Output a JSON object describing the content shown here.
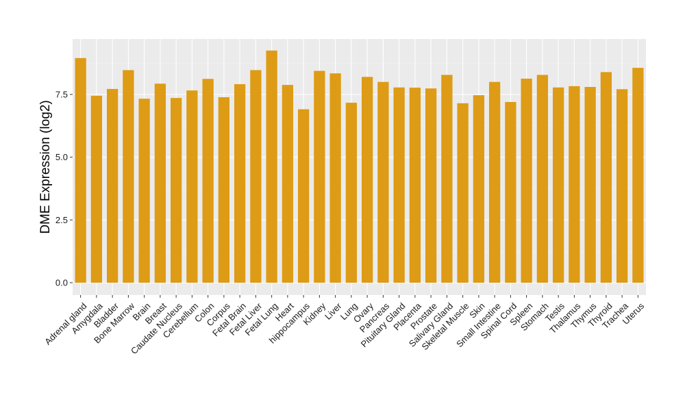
{
  "colors": {
    "bar": "#DE9B15",
    "panel_background": "#EBEBEB",
    "grid_major": "#FFFFFF",
    "grid_minor": "#F5F5F5",
    "tick_mark": "#333333"
  },
  "chart_data": {
    "type": "bar",
    "title": "",
    "xlabel": "",
    "ylabel": "DME Expression (log2)",
    "ylim": [
      -0.45,
      9.75
    ],
    "yticks": [
      0.0,
      2.5,
      5.0,
      7.5
    ],
    "ytick_labels": [
      "0.0",
      "2.5",
      "5.0",
      "7.5"
    ],
    "grid": true,
    "legend": "none",
    "categories": [
      "Adrenal gland",
      "Amygdala",
      "Bladder",
      "Bone Marrow",
      "Brain",
      "Breast",
      "Caudate Nucleus",
      "Cerebellum",
      "Colon",
      "Corpus",
      "Fetal Brain",
      "Fetal Liver",
      "Fetal Lung",
      "Heart",
      "hippocampus",
      "Kidney",
      "Liver",
      "Lung",
      "Ovary",
      "Pancreas",
      "Pituitary Gland",
      "Placenta",
      "Prostate",
      "Salivary Gland",
      "Skeletal Muscle",
      "Skin",
      "Small Intestine",
      "Spinal Cord",
      "Spleen",
      "Stomach",
      "Testis",
      "Thalamus",
      "Thymus",
      "Thyroid",
      "Trachea",
      "Uterus"
    ],
    "values": [
      8.95,
      7.45,
      7.72,
      8.47,
      7.33,
      7.93,
      7.36,
      7.66,
      8.12,
      7.39,
      7.91,
      8.47,
      9.25,
      7.88,
      6.91,
      8.44,
      8.34,
      7.17,
      8.2,
      8.0,
      7.78,
      7.77,
      7.74,
      8.28,
      7.15,
      7.47,
      8.0,
      7.2,
      8.13,
      8.28,
      7.78,
      7.83,
      7.8,
      8.39,
      7.71,
      8.56
    ]
  }
}
